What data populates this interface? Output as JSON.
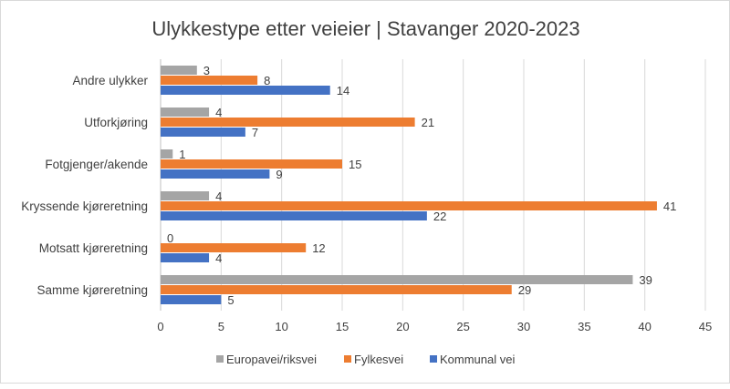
{
  "chart_data": {
    "type": "bar",
    "orientation": "horizontal",
    "title": "Ulykkestype etter veieier | Stavanger 2020-2023",
    "categories": [
      "Andre ulykker",
      "Utforkjøring",
      "Fotgjenger/akende",
      "Kryssende kjøreretning",
      "Motsatt kjøreretning",
      "Samme kjøreretning"
    ],
    "series": [
      {
        "name": "Europavei/riksvei",
        "color": "#A5A5A5",
        "values": [
          3,
          4,
          1,
          4,
          0,
          39
        ]
      },
      {
        "name": "Fylkesvei",
        "color": "#ED7D31",
        "values": [
          8,
          21,
          15,
          41,
          12,
          29
        ]
      },
      {
        "name": "Kommunal vei",
        "color": "#4472C4",
        "values": [
          14,
          7,
          9,
          22,
          4,
          5
        ]
      }
    ],
    "xlim": [
      0,
      45
    ],
    "xticks": [
      "0",
      "5",
      "10",
      "15",
      "20",
      "25",
      "30",
      "35",
      "40",
      "45"
    ],
    "grid": true,
    "legend": "bottom",
    "data_labels": true
  }
}
